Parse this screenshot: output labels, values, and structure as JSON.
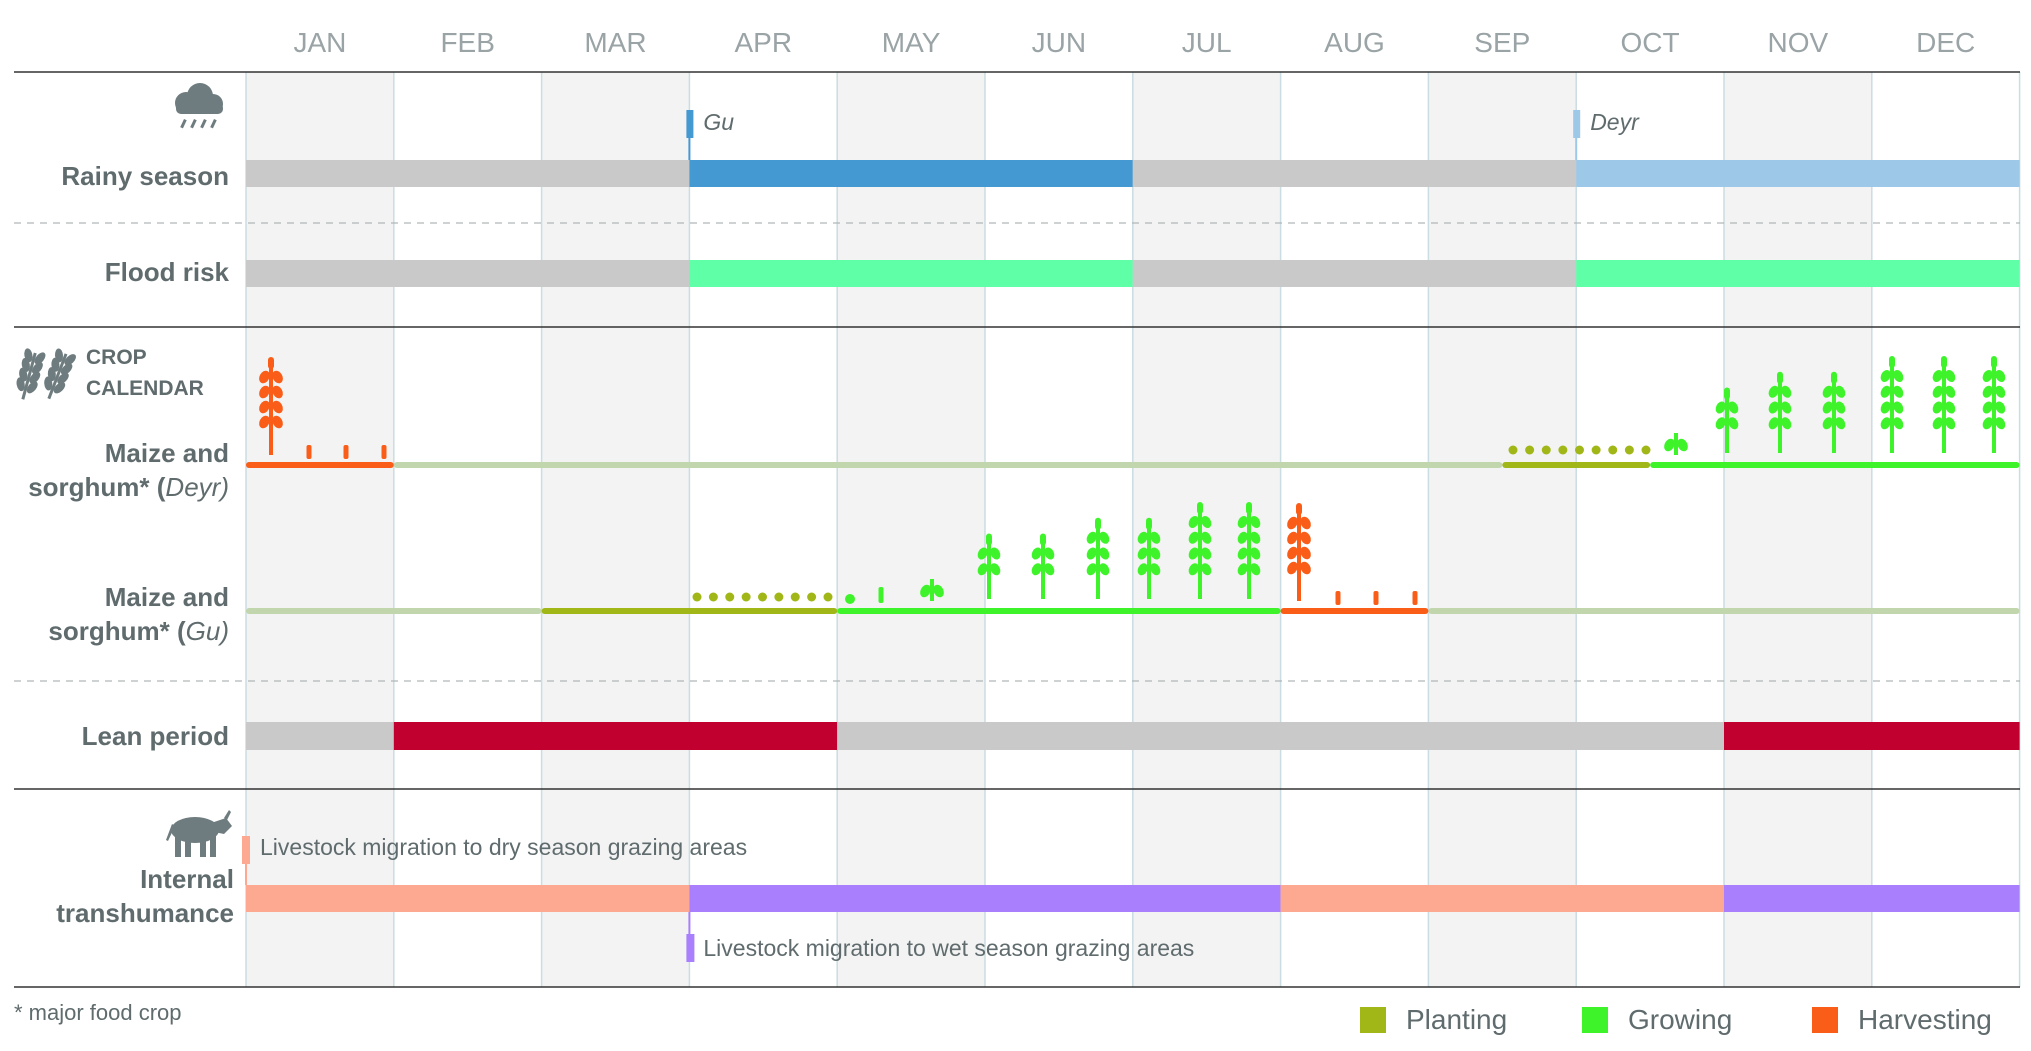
{
  "months": [
    "JAN",
    "FEB",
    "MAR",
    "APR",
    "MAY",
    "JUN",
    "JUL",
    "AUG",
    "SEP",
    "OCT",
    "NOV",
    "DEC"
  ],
  "colors": {
    "grey_bar": "#c9c9c9",
    "gu_rain": "#4499d2",
    "deyr_rain": "#9dc8e8",
    "flood": "#5effa6",
    "planting": "#a1b718",
    "growing": "#3ff32b",
    "harvesting": "#fa5d18",
    "offseason": "#c2d6ad",
    "lean": "#c10030",
    "migration_dry": "#fda891",
    "migration_wet": "#a97ffd",
    "text": "#5f6b6d"
  },
  "rows": {
    "rainy_season": {
      "label": "Rainy season",
      "icon": "rain-cloud-icon",
      "gu_marker": "Gu",
      "deyr_marker": "Deyr",
      "segments": [
        {
          "start": 0,
          "end": 3,
          "type": "grey"
        },
        {
          "start": 3,
          "end": 6,
          "type": "gu"
        },
        {
          "start": 6,
          "end": 9,
          "type": "grey"
        },
        {
          "start": 9,
          "end": 12,
          "type": "deyr"
        }
      ]
    },
    "flood_risk": {
      "label": "Flood risk",
      "segments": [
        {
          "start": 0,
          "end": 3,
          "type": "grey"
        },
        {
          "start": 3,
          "end": 6,
          "type": "flood"
        },
        {
          "start": 6,
          "end": 9,
          "type": "grey"
        },
        {
          "start": 9,
          "end": 12,
          "type": "flood"
        }
      ]
    },
    "crop_calendar": {
      "label_line1": "CROP",
      "label_line2": "CALENDAR",
      "icon": "wheat-icon"
    },
    "deyr_crop": {
      "label_line1": "Maize and",
      "label_line2": "sorghum* (",
      "label_italic": "Deyr",
      "label_close": ")",
      "segments": [
        {
          "start": 0,
          "end": 1,
          "type": "harvesting"
        },
        {
          "start": 1,
          "end": 8.5,
          "type": "offseason"
        },
        {
          "start": 8.5,
          "end": 9.5,
          "type": "planting"
        },
        {
          "start": 9.5,
          "end": 12,
          "type": "growing"
        }
      ]
    },
    "gu_crop": {
      "label_line1": "Maize and",
      "label_line2": "sorghum* (",
      "label_italic": "Gu",
      "label_close": ")",
      "segments": [
        {
          "start": 0,
          "end": 2,
          "type": "offseason"
        },
        {
          "start": 2,
          "end": 4,
          "type": "planting"
        },
        {
          "start": 4,
          "end": 7,
          "type": "growing"
        },
        {
          "start": 7,
          "end": 8,
          "type": "harvesting"
        },
        {
          "start": 8,
          "end": 12,
          "type": "offseason"
        }
      ]
    },
    "lean_period": {
      "label": "Lean period",
      "segments": [
        {
          "start": 0,
          "end": 1,
          "type": "grey"
        },
        {
          "start": 1,
          "end": 4,
          "type": "lean"
        },
        {
          "start": 4,
          "end": 10,
          "type": "grey"
        },
        {
          "start": 10,
          "end": 12,
          "type": "lean"
        }
      ]
    },
    "transhumance": {
      "label_line1": "Internal",
      "label_line2": "transhumance",
      "icon": "cow-icon",
      "dry_note": "Livestock migration to dry season grazing areas",
      "wet_note": "Livestock migration to wet season grazing areas",
      "segments": [
        {
          "start": 0,
          "end": 3,
          "type": "dry"
        },
        {
          "start": 3,
          "end": 7,
          "type": "wet"
        },
        {
          "start": 7,
          "end": 10,
          "type": "dry"
        },
        {
          "start": 10,
          "end": 12,
          "type": "wet"
        }
      ]
    }
  },
  "footnote": "* major food crop",
  "legend": [
    {
      "label": "Planting",
      "color": "#a1b718"
    },
    {
      "label": "Growing",
      "color": "#3ff32b"
    },
    {
      "label": "Harvesting",
      "color": "#fa5d18"
    }
  ]
}
